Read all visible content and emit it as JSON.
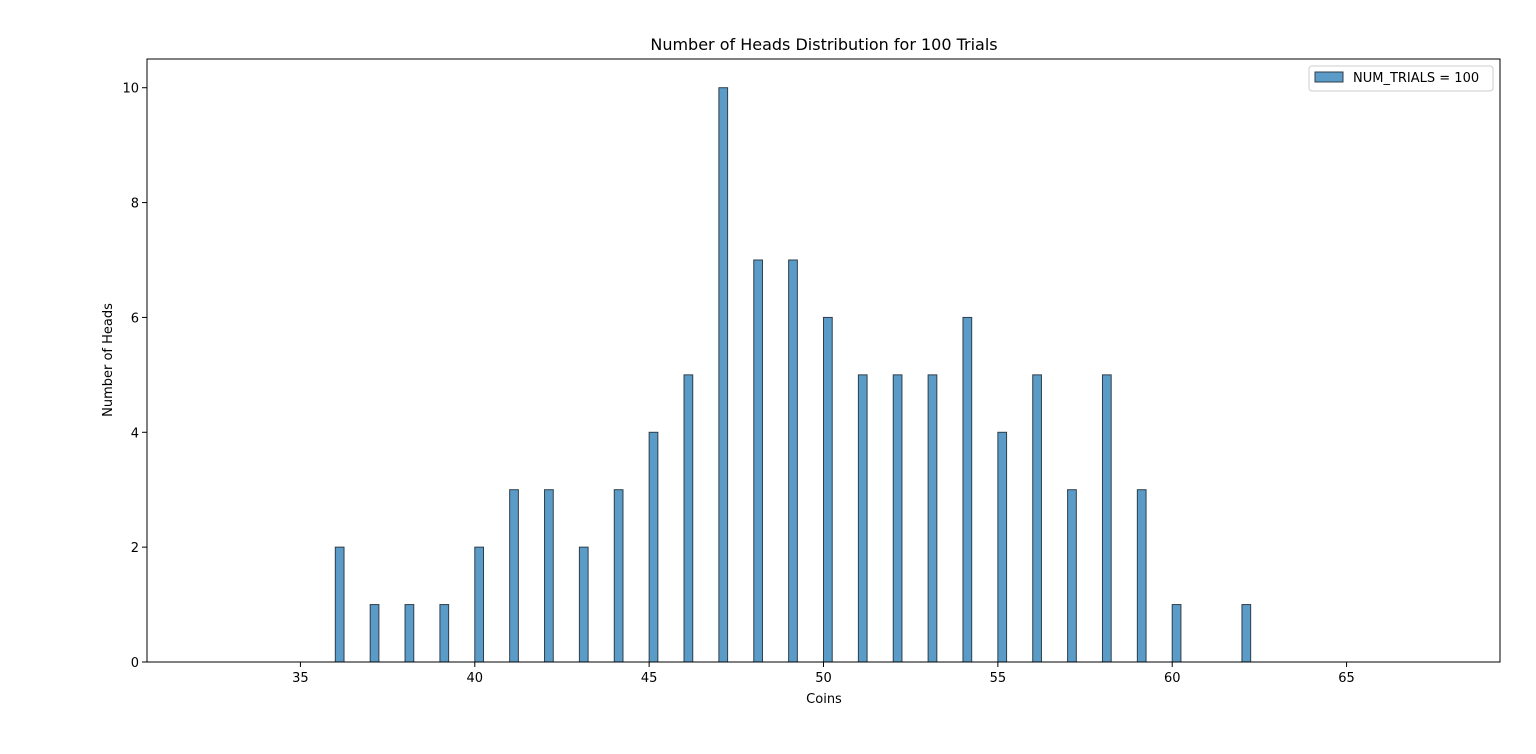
{
  "chart_data": {
    "type": "bar",
    "title": "Number of Heads Distribution for 100 Trials",
    "xlabel": "Coins",
    "ylabel": "Number of Heads",
    "xlim": [
      30.6,
      69.4
    ],
    "ylim": [
      0,
      10.5
    ],
    "xticks": [
      35,
      40,
      45,
      50,
      55,
      60,
      65
    ],
    "yticks": [
      0,
      2,
      4,
      6,
      8,
      10
    ],
    "grid": false,
    "legend": {
      "position": "top-right",
      "entries": [
        "NUM_TRIALS = 100"
      ]
    },
    "bar_color": "#5b9bc8",
    "edge_color": "#2f3e4a",
    "bin_width": 0.25,
    "series": [
      {
        "name": "NUM_TRIALS = 100",
        "x": [
          36,
          37,
          38,
          39,
          40,
          41,
          42,
          43,
          44,
          45,
          46,
          47,
          48,
          49,
          50,
          51,
          52,
          53,
          54,
          55,
          56,
          57,
          58,
          59,
          60,
          62
        ],
        "values": [
          2,
          1,
          1,
          1,
          2,
          3,
          3,
          2,
          3,
          4,
          5,
          10,
          7,
          7,
          6,
          5,
          5,
          5,
          6,
          4,
          5,
          3,
          5,
          3,
          1,
          1
        ]
      }
    ]
  }
}
